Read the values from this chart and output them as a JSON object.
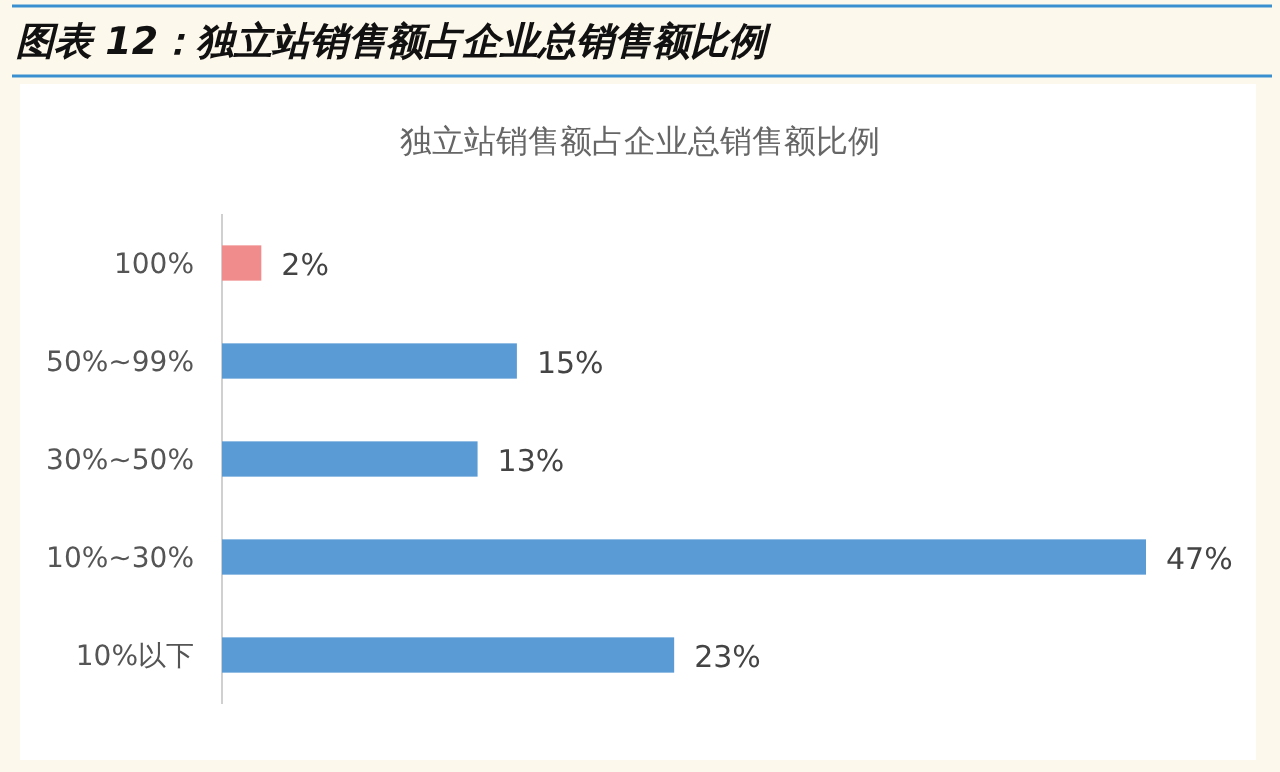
{
  "chart_data": {
    "type": "bar",
    "orientation": "horizontal",
    "title": "图表 12：独立站销售额占企业总销售额比例",
    "subtitle": "独立站销售额占企业总销售额比例",
    "categories": [
      "100%",
      "50%~99%",
      "30%~50%",
      "10%~30%",
      "10%以下"
    ],
    "values": [
      2,
      15,
      13,
      47,
      23
    ],
    "colors": [
      "#f08c8c",
      "#5b9bd5",
      "#5b9bd5",
      "#5b9bd5",
      "#5b9bd5"
    ],
    "value_labels": [
      "2%",
      "15%",
      "13%",
      "47%",
      "23%"
    ]
  }
}
